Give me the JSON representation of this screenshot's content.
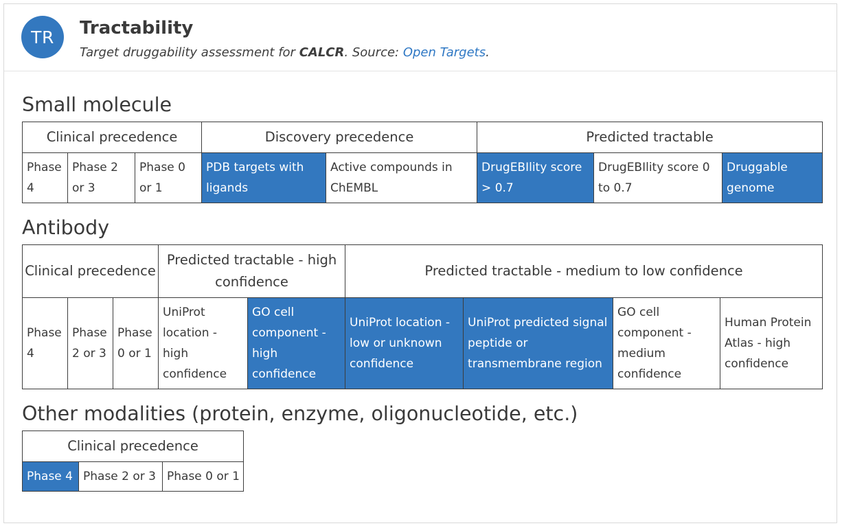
{
  "header": {
    "avatar_text": "TR",
    "title": "Tractability",
    "subtitle_prefix": "Target druggability assessment for ",
    "target": "CALCR",
    "subtitle_mid": ". Source: ",
    "source_link": "Open Targets",
    "subtitle_end": "."
  },
  "colors": {
    "highlight": "#3378bf",
    "border": "#3d3d3d",
    "link": "#2f78c4"
  },
  "small_molecule": {
    "title": "Small molecule",
    "groups": [
      "Clinical precedence",
      "Discovery precedence",
      "Predicted tractable"
    ],
    "cells": [
      {
        "label": "Phase 4",
        "active": false
      },
      {
        "label": "Phase 2 or 3",
        "active": false
      },
      {
        "label": "Phase 0 or 1",
        "active": false
      },
      {
        "label": "PDB targets with ligands",
        "active": true
      },
      {
        "label": "Active compounds in ChEMBL",
        "active": false
      },
      {
        "label": "DrugEBIlity score > 0.7",
        "active": true
      },
      {
        "label": "DrugEBIlity score 0 to 0.7",
        "active": false
      },
      {
        "label": "Druggable genome",
        "active": true
      }
    ]
  },
  "antibody": {
    "title": "Antibody",
    "groups": [
      "Clinical precedence",
      "Predicted tractable - high confidence",
      "Predicted tractable - medium to low confidence"
    ],
    "cells": [
      {
        "label": "Phase 4",
        "active": false
      },
      {
        "label": "Phase 2 or 3",
        "active": false
      },
      {
        "label": "Phase 0 or 1",
        "active": false
      },
      {
        "label": "UniProt location - high confidence",
        "active": false
      },
      {
        "label": "GO cell component - high confidence",
        "active": true
      },
      {
        "label": "UniProt location - low or unknown confidence",
        "active": true
      },
      {
        "label": "UniProt predicted signal peptide or transmembrane region",
        "active": true
      },
      {
        "label": "GO cell component - medium confidence",
        "active": false
      },
      {
        "label": "Human Protein Atlas - high confidence",
        "active": false
      }
    ]
  },
  "other": {
    "title": "Other modalities (protein, enzyme, oligonucleotide, etc.)",
    "groups": [
      "Clinical precedence"
    ],
    "cells": [
      {
        "label": "Phase 4",
        "active": true
      },
      {
        "label": "Phase 2 or 3",
        "active": false
      },
      {
        "label": "Phase 0 or 1",
        "active": false
      }
    ]
  }
}
